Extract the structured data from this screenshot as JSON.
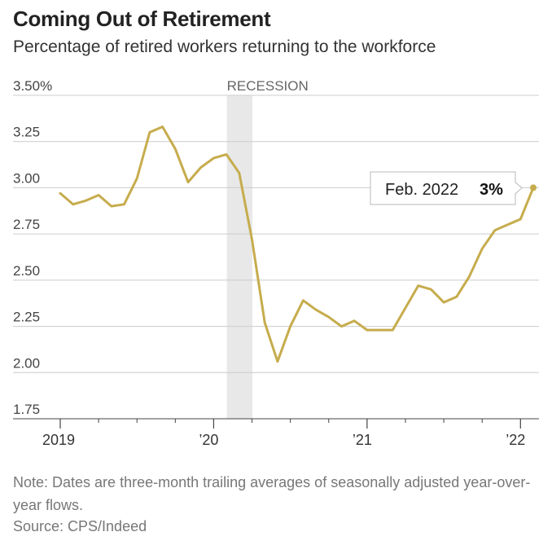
{
  "header": {
    "title": "Coming Out of Retirement",
    "subtitle": "Percentage of retired workers returning to the workforce"
  },
  "annotations": {
    "recession": "RECESSION",
    "callout_date": "Feb. 2022",
    "callout_value": "3%"
  },
  "footer": {
    "note": "Note: Dates are three-month trailing averages of seasonally adjusted year-over-year flows.",
    "source": "Source: CPS/Indeed"
  },
  "colors": {
    "line": "#c6ac4d",
    "recession": "#e8e8e8",
    "grid": "#cccccc"
  },
  "chart_data": {
    "type": "line",
    "title": "Coming Out of Retirement",
    "subtitle": "Percentage of retired workers returning to the workforce",
    "xlabel": "",
    "ylabel": "",
    "x_tick_labels": [
      "2019",
      "’20",
      "’21",
      "’22"
    ],
    "y_tick_labels": [
      "3.50%",
      "3.25",
      "3.00",
      "2.75",
      "2.50",
      "2.25",
      "2.00",
      "1.75"
    ],
    "ylim": [
      1.75,
      3.5
    ],
    "grid": true,
    "recession_shading": [
      "2020-02",
      "2020-04"
    ],
    "series": [
      {
        "x": [
          "2019-01",
          "2019-02",
          "2019-03",
          "2019-04",
          "2019-05",
          "2019-06",
          "2019-07",
          "2019-08",
          "2019-09",
          "2019-10",
          "2019-11",
          "2019-12",
          "2020-01",
          "2020-02",
          "2020-03",
          "2020-04",
          "2020-05",
          "2020-06",
          "2020-07",
          "2020-08",
          "2020-09",
          "2020-10",
          "2020-11",
          "2020-12",
          "2021-01",
          "2021-02",
          "2021-03",
          "2021-04",
          "2021-05",
          "2021-06",
          "2021-07",
          "2021-08",
          "2021-09",
          "2021-10",
          "2021-11",
          "2021-12",
          "2022-01",
          "2022-02"
        ],
        "values": [
          2.97,
          2.91,
          2.93,
          2.96,
          2.9,
          2.91,
          3.05,
          3.3,
          3.33,
          3.21,
          3.03,
          3.11,
          3.16,
          3.18,
          3.08,
          2.72,
          2.27,
          2.06,
          2.25,
          2.39,
          2.34,
          2.3,
          2.25,
          2.28,
          2.23,
          2.23,
          2.23,
          2.35,
          2.47,
          2.45,
          2.38,
          2.41,
          2.52,
          2.67,
          2.77,
          2.8,
          2.83,
          3.0
        ]
      }
    ]
  }
}
